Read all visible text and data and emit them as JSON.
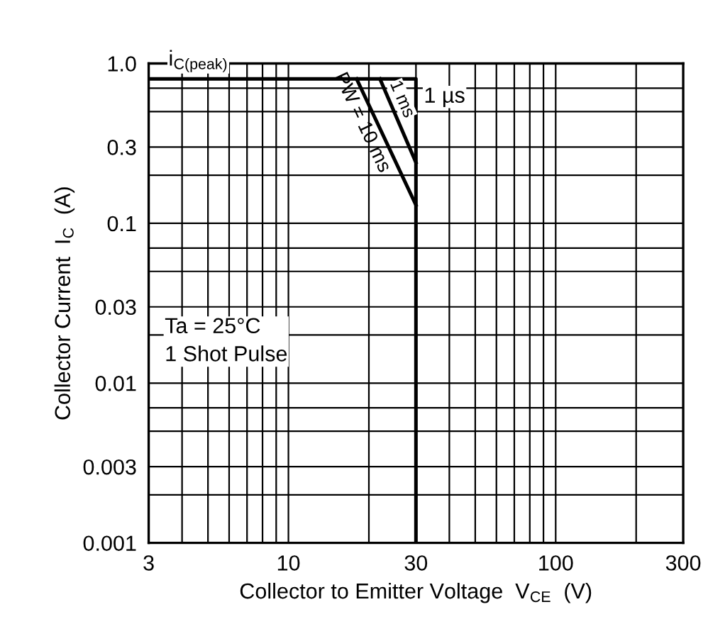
{
  "chart_data": {
    "type": "line",
    "xlabel": "Collector to Emitter Voltage  V$_{CE}$  (V)",
    "ylabel": "Collector Current  I$_{C}$  (A)",
    "log": "xy",
    "xlim": [
      3,
      300
    ],
    "ylim": [
      0.001,
      1.0
    ],
    "xticks": [
      3,
      {
        "value": 4,
        "label": null
      },
      {
        "value": 5,
        "label": null
      },
      {
        "value": 6,
        "label": null
      },
      {
        "value": 7,
        "label": null
      },
      {
        "value": 8,
        "label": null
      },
      {
        "value": 9,
        "label": null
      },
      10,
      {
        "value": 20,
        "label": null
      },
      30,
      {
        "value": 40,
        "label": null
      },
      {
        "value": 50,
        "label": null
      },
      {
        "value": 60,
        "label": null
      },
      {
        "value": 70,
        "label": null
      },
      {
        "value": 80,
        "label": null
      },
      {
        "value": 90,
        "label": null
      },
      100,
      {
        "value": 200,
        "label": null
      },
      300
    ],
    "yticks": [
      0.001,
      {
        "value": 0.002,
        "label": null
      },
      0.003,
      {
        "value": 0.005,
        "label": null
      },
      {
        "value": 0.007,
        "label": null
      },
      0.01,
      {
        "value": 0.02,
        "label": null
      },
      0.03,
      {
        "value": 0.05,
        "label": null
      },
      {
        "value": 0.07,
        "label": null
      },
      0.1,
      {
        "value": 0.2,
        "label": null
      },
      0.3,
      {
        "value": 0.5,
        "label": null
      },
      {
        "value": 0.7,
        "label": null
      },
      {
        "value": 1.0,
        "label": "1.0"
      }
    ],
    "grid": true,
    "marker": "none",
    "line_style": "solid",
    "series": [
      {
        "name": "1 µs",
        "color": "#000000",
        "x": [
          3,
          30,
          30
        ],
        "values": [
          0.8,
          0.8,
          0.001
        ]
      },
      {
        "name": "1 ms",
        "color": "#000000",
        "x": [
          22,
          30
        ],
        "values": [
          0.8,
          0.24
        ]
      },
      {
        "name": "PW = 10 ms",
        "color": "#000000",
        "x": [
          18,
          30
        ],
        "values": [
          0.8,
          0.13
        ]
      }
    ],
    "annotations": [
      {
        "text": "i$_{C(peak)}$",
        "x": 4.6,
        "y": 0.8
      },
      "Ta = 25°C\n1 Shot Pulse"
    ]
  }
}
